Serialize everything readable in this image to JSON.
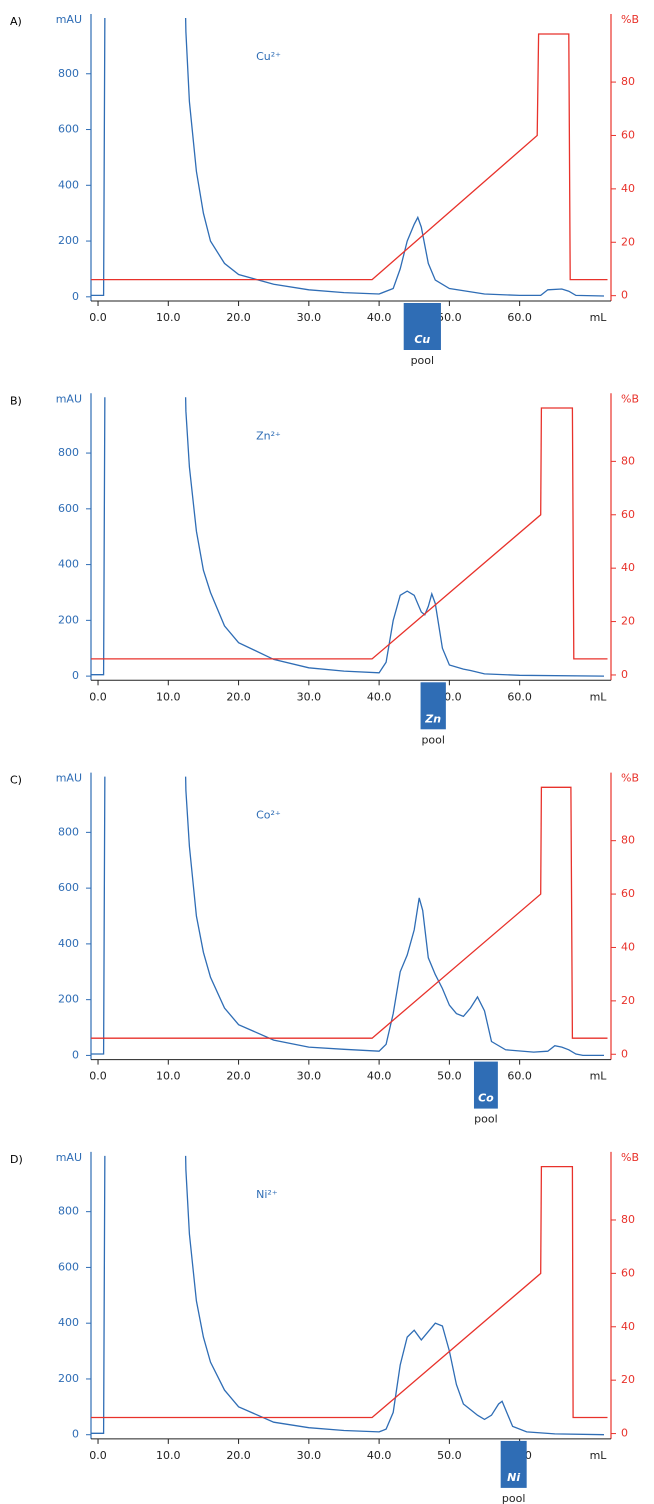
{
  "chart_data": [
    {
      "type": "line",
      "panel": "A)",
      "annotation": "Cu²⁺",
      "y_label": "mAU",
      "y2_label": "%B",
      "x_label": "mL",
      "xlim": [
        -1,
        73
      ],
      "ylim": [
        -15,
        1000
      ],
      "y2lim": [
        -2,
        104
      ],
      "xticks": [
        {
          "value": 0,
          "label": "0.0"
        },
        {
          "value": 10,
          "label": "10.0"
        },
        {
          "value": 20,
          "label": "20.0"
        },
        {
          "value": 30,
          "label": "30.0"
        },
        {
          "value": 40,
          "label": "40.0"
        },
        {
          "value": 50,
          "label": "50.0"
        },
        {
          "value": 60,
          "label": "60.0"
        }
      ],
      "yticks": [
        0,
        200,
        400,
        600,
        800
      ],
      "y2ticks": [
        0,
        20,
        40,
        60,
        80
      ],
      "series": [
        {
          "color": "#2f6db5",
          "x": [
            -1,
            0.8,
            1,
            12.3,
            12.5,
            13,
            14,
            15,
            16,
            18,
            20,
            25,
            30,
            35,
            40,
            42,
            43,
            44,
            45,
            45.5,
            46,
            47,
            48,
            50,
            55,
            60,
            63,
            64,
            66,
            67,
            68,
            72
          ],
          "values": [
            5,
            5,
            1200,
            1200,
            950,
            700,
            450,
            300,
            200,
            120,
            80,
            45,
            25,
            15,
            10,
            30,
            100,
            200,
            260,
            285,
            250,
            120,
            60,
            30,
            10,
            5,
            5,
            25,
            28,
            20,
            5,
            3
          ]
        },
        {
          "color": "#e8322b",
          "axis": "y2",
          "x": [
            -1,
            39,
            62.5,
            62.7,
            67,
            67.2,
            72.5
          ],
          "values": [
            6,
            6,
            60,
            98,
            98,
            6,
            6
          ]
        }
      ],
      "pool": {
        "label": "Cu",
        "text": "pool",
        "range": [
          43.5,
          48.8
        ]
      }
    },
    {
      "type": "line",
      "panel": "B)",
      "annotation": "Zn²⁺",
      "y_label": "mAU",
      "y2_label": "%B",
      "x_label": "mL",
      "xlim": [
        -1,
        73
      ],
      "ylim": [
        -15,
        1000
      ],
      "y2lim": [
        -2,
        104
      ],
      "xticks": [
        {
          "value": 0,
          "label": "0.0"
        },
        {
          "value": 10,
          "label": "10.0"
        },
        {
          "value": 20,
          "label": "20.0"
        },
        {
          "value": 30,
          "label": "30.0"
        },
        {
          "value": 40,
          "label": "40.0"
        },
        {
          "value": 50,
          "label": "50.0"
        },
        {
          "value": 60,
          "label": "60.0"
        }
      ],
      "yticks": [
        0,
        200,
        400,
        600,
        800
      ],
      "y2ticks": [
        0,
        20,
        40,
        60,
        80
      ],
      "series": [
        {
          "color": "#2f6db5",
          "x": [
            -1,
            0.8,
            1,
            12.3,
            12.5,
            13,
            14,
            15,
            16,
            18,
            20,
            25,
            30,
            35,
            40,
            41,
            42,
            43,
            44,
            45,
            46,
            46.5,
            47,
            47.5,
            48,
            49,
            50,
            52,
            53,
            55,
            60,
            72
          ],
          "values": [
            5,
            5,
            1200,
            1200,
            950,
            750,
            520,
            380,
            300,
            180,
            120,
            60,
            30,
            18,
            12,
            50,
            200,
            290,
            305,
            290,
            230,
            220,
            250,
            295,
            260,
            100,
            40,
            25,
            20,
            8,
            3,
            0
          ]
        },
        {
          "color": "#e8322b",
          "axis": "y2",
          "x": [
            -1,
            39,
            63,
            63.1,
            67.5,
            67.7,
            72.5
          ],
          "values": [
            6,
            6,
            60,
            100,
            100,
            6,
            6
          ]
        }
      ],
      "pool": {
        "label": "Zn",
        "text": "pool",
        "range": [
          45.9,
          49.5
        ]
      }
    },
    {
      "type": "line",
      "panel": "C)",
      "annotation": "Co²⁺",
      "y_label": "mAU",
      "y2_label": "%B",
      "x_label": "mL",
      "xlim": [
        -1,
        73
      ],
      "ylim": [
        -15,
        1000
      ],
      "y2lim": [
        -2,
        104
      ],
      "xticks": [
        {
          "value": 0,
          "label": "0.0"
        },
        {
          "value": 10,
          "label": "10.0"
        },
        {
          "value": 20,
          "label": "20.0"
        },
        {
          "value": 30,
          "label": "30.0"
        },
        {
          "value": 40,
          "label": "40.0"
        },
        {
          "value": 50,
          "label": "50.0"
        },
        {
          "value": 60,
          "label": "60.0"
        }
      ],
      "yticks": [
        0,
        200,
        400,
        600,
        800
      ],
      "y2ticks": [
        0,
        20,
        40,
        60,
        80
      ],
      "series": [
        {
          "color": "#2f6db5",
          "x": [
            -1,
            0.8,
            1,
            12.3,
            12.5,
            13,
            14,
            15,
            16,
            18,
            20,
            25,
            30,
            35,
            40,
            41,
            42,
            43,
            44,
            45,
            45.7,
            46.2,
            47,
            48,
            49,
            50,
            51,
            52,
            53,
            54,
            55,
            56,
            58,
            62,
            64,
            65,
            66,
            67,
            68,
            69,
            72
          ],
          "values": [
            5,
            5,
            1200,
            1200,
            950,
            750,
            500,
            370,
            280,
            170,
            110,
            55,
            30,
            22,
            15,
            40,
            150,
            300,
            360,
            450,
            565,
            520,
            350,
            290,
            240,
            180,
            150,
            140,
            170,
            210,
            160,
            50,
            20,
            12,
            15,
            35,
            30,
            20,
            5,
            0,
            0
          ]
        },
        {
          "color": "#e8322b",
          "axis": "y2",
          "x": [
            -1,
            39,
            63,
            63.1,
            67.3,
            67.5,
            72.5
          ],
          "values": [
            6,
            6,
            60,
            100,
            100,
            6,
            6
          ]
        }
      ],
      "pool": {
        "label": "Co",
        "text": "pool",
        "range": [
          53.5,
          56.9
        ]
      }
    },
    {
      "type": "line",
      "panel": "D)",
      "annotation": "Ni²⁺",
      "y_label": "mAU",
      "y2_label": "%B",
      "x_label": "mL",
      "xlim": [
        -1,
        73
      ],
      "ylim": [
        -15,
        1000
      ],
      "y2lim": [
        -2,
        104
      ],
      "xticks": [
        {
          "value": 0,
          "label": "0.0"
        },
        {
          "value": 10,
          "label": "10.0"
        },
        {
          "value": 20,
          "label": "20.0"
        },
        {
          "value": 30,
          "label": "30.0"
        },
        {
          "value": 40,
          "label": "40.0"
        },
        {
          "value": 50,
          "label": "50.0"
        },
        {
          "value": 60,
          "label": "60.0"
        }
      ],
      "yticks": [
        0,
        200,
        400,
        600,
        800
      ],
      "y2ticks": [
        0,
        20,
        40,
        60,
        80
      ],
      "series": [
        {
          "color": "#2f6db5",
          "x": [
            -1,
            0.8,
            1,
            12.3,
            12.5,
            13,
            14,
            15,
            16,
            18,
            20,
            25,
            30,
            35,
            40,
            41,
            42,
            43,
            44,
            45,
            46,
            47,
            48,
            49,
            50,
            51,
            52,
            53,
            54,
            55,
            56,
            57,
            57.5,
            58,
            59,
            61,
            65,
            72
          ],
          "values": [
            5,
            5,
            1200,
            1200,
            950,
            720,
            480,
            350,
            260,
            160,
            100,
            45,
            25,
            15,
            10,
            20,
            80,
            250,
            350,
            375,
            340,
            370,
            400,
            390,
            300,
            180,
            110,
            90,
            70,
            55,
            70,
            110,
            120,
            90,
            30,
            10,
            3,
            0
          ]
        },
        {
          "color": "#e8322b",
          "axis": "y2",
          "x": [
            -1,
            39,
            63,
            63.1,
            67.5,
            67.6,
            72.5
          ],
          "values": [
            6,
            6,
            60,
            100,
            100,
            6,
            6
          ]
        }
      ],
      "pool": {
        "label": "Ni",
        "text": "pool",
        "range": [
          57.3,
          61.0
        ]
      }
    }
  ]
}
